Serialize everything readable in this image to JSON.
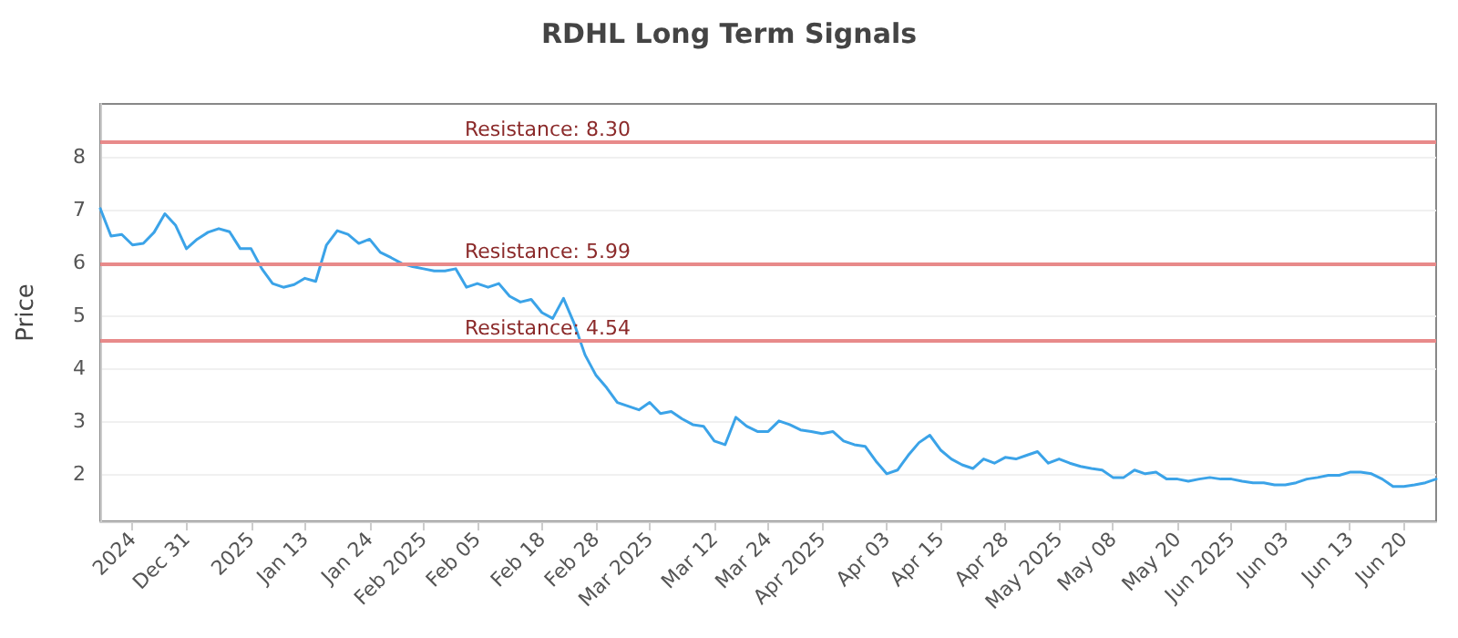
{
  "chart_data": {
    "type": "line",
    "title": "RDHL Long Term Signals",
    "ylabel": "Price",
    "categories": [
      null,
      null,
      null,
      "2024",
      null,
      null,
      null,
      null,
      "Dec 31",
      null,
      null,
      null,
      null,
      null,
      "2025",
      null,
      null,
      null,
      null,
      "Jan 13",
      null,
      null,
      null,
      null,
      null,
      "Jan 24",
      null,
      null,
      null,
      null,
      "Feb 2025",
      null,
      null,
      null,
      null,
      "Feb 05",
      null,
      null,
      null,
      null,
      null,
      "Feb 18",
      null,
      null,
      null,
      null,
      "Feb 28",
      null,
      null,
      null,
      null,
      "Mar 2025",
      null,
      null,
      null,
      null,
      null,
      "Mar 12",
      null,
      null,
      null,
      null,
      "Mar 24",
      null,
      null,
      null,
      null,
      "Apr 2025",
      null,
      null,
      null,
      null,
      null,
      "Apr 03",
      null,
      null,
      null,
      null,
      "Apr 15",
      null,
      null,
      null,
      null,
      null,
      "Apr 28",
      null,
      null,
      null,
      null,
      "May 2025",
      null,
      null,
      null,
      null,
      "May 08",
      null,
      null,
      null,
      null,
      null,
      "May 20",
      null,
      null,
      null,
      null,
      "Jun 2025",
      null,
      null,
      null,
      null,
      "Jun 03",
      null,
      null,
      null,
      null,
      null,
      "Jun 13",
      null,
      null,
      null,
      null,
      "Jun 20",
      null,
      null,
      null
    ],
    "series": [
      {
        "color": "#3ba3e8",
        "values": [
          7.02,
          6.5,
          6.53,
          6.33,
          6.36,
          6.57,
          6.92,
          6.7,
          6.26,
          6.44,
          6.57,
          6.64,
          6.58,
          6.26,
          6.26,
          5.88,
          5.6,
          5.53,
          5.58,
          5.7,
          5.64,
          6.33,
          6.6,
          6.53,
          6.36,
          6.44,
          6.19,
          6.09,
          5.98,
          5.92,
          5.88,
          5.84,
          5.84,
          5.88,
          5.53,
          5.6,
          5.53,
          5.6,
          5.36,
          5.25,
          5.3,
          5.05,
          4.94,
          5.32,
          4.84,
          4.25,
          3.87,
          3.63,
          3.35,
          3.28,
          3.21,
          3.35,
          3.14,
          3.18,
          3.04,
          2.93,
          2.9,
          2.62,
          2.55,
          3.07,
          2.9,
          2.8,
          2.8,
          3.0,
          2.93,
          2.83,
          2.8,
          2.76,
          2.8,
          2.62,
          2.55,
          2.52,
          2.24,
          2.0,
          2.07,
          2.35,
          2.59,
          2.73,
          2.45,
          2.28,
          2.17,
          2.1,
          2.28,
          2.2,
          2.31,
          2.28,
          2.35,
          2.42,
          2.2,
          2.28,
          2.2,
          2.14,
          2.1,
          2.07,
          1.93,
          1.93,
          2.07,
          2.0,
          2.03,
          1.9,
          1.9,
          1.86,
          1.9,
          1.93,
          1.9,
          1.9,
          1.86,
          1.83,
          1.83,
          1.79,
          1.79,
          1.83,
          1.9,
          1.93,
          1.97,
          1.97,
          2.03,
          2.03,
          2.0,
          1.9,
          1.76,
          1.76,
          1.79,
          1.83,
          1.9
        ]
      }
    ],
    "ylim": [
      1.1,
      9.0
    ],
    "yticks": [
      2,
      3,
      4,
      5,
      6,
      7,
      8
    ],
    "ref_lines": [
      {
        "axis": "y",
        "value": 8.3,
        "label": "Resistance: 8.30",
        "color": "#e88a8a"
      },
      {
        "axis": "y",
        "value": 5.99,
        "label": "Resistance: 5.99",
        "color": "#e88a8a"
      },
      {
        "axis": "y",
        "value": 4.54,
        "label": "Resistance: 4.54",
        "color": "#e88a8a"
      }
    ],
    "grid": "y",
    "marker": "none",
    "line_style": "solid"
  }
}
